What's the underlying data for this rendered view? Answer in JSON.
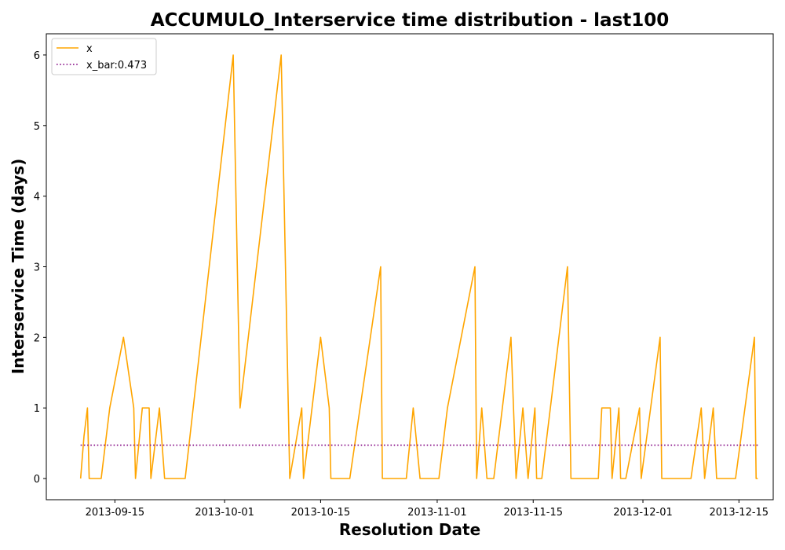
{
  "chart_data": {
    "type": "line",
    "title": "ACCUMULO_Interservice time distribution - last100",
    "xlabel": "Resolution Date",
    "ylabel": "Interservice Time (days)",
    "x_tick_labels": [
      "2013-09-15",
      "2013-10-01",
      "2013-10-15",
      "2013-11-01",
      "2013-11-15",
      "2013-12-01",
      "2013-12-15"
    ],
    "y_tick_labels": [
      "0",
      "1",
      "2",
      "3",
      "4",
      "5",
      "6"
    ],
    "ylim": [
      -0.3,
      6.3
    ],
    "xlim": [
      "2013-09-05",
      "2013-12-20"
    ],
    "legend": {
      "placement": "upper-left",
      "entries": [
        "x",
        "x_bar:0.473"
      ]
    },
    "series": [
      {
        "name": "x",
        "color": "#ffa500",
        "style": "solid",
        "points": [
          [
            "2013-09-10T00",
            0
          ],
          [
            "2013-09-10T12",
            0.6
          ],
          [
            "2013-09-11T00",
            1
          ],
          [
            "2013-09-11T06",
            0
          ],
          [
            "2013-09-12T00",
            0
          ],
          [
            "2013-09-13T00",
            0
          ],
          [
            "2013-09-14T06",
            1
          ],
          [
            "2013-09-16T06",
            2
          ],
          [
            "2013-09-17T18",
            1
          ],
          [
            "2013-09-18T00",
            0
          ],
          [
            "2013-09-19T00",
            1
          ],
          [
            "2013-09-20T00",
            1
          ],
          [
            "2013-09-20T06",
            0
          ],
          [
            "2013-09-21T12",
            1
          ],
          [
            "2013-09-22T06",
            0
          ],
          [
            "2013-09-23T00",
            0
          ],
          [
            "2013-09-25T06",
            0
          ],
          [
            "2013-10-02T06",
            6
          ],
          [
            "2013-10-03T06",
            1
          ],
          [
            "2013-10-09T06",
            6
          ],
          [
            "2013-10-10T12",
            0
          ],
          [
            "2013-10-12T06",
            1
          ],
          [
            "2013-10-12T12",
            0
          ],
          [
            "2013-10-15T00",
            2
          ],
          [
            "2013-10-16T06",
            1
          ],
          [
            "2013-10-16T12",
            0
          ],
          [
            "2013-10-18T00",
            0
          ],
          [
            "2013-10-19T06",
            0
          ],
          [
            "2013-10-23T18",
            3
          ],
          [
            "2013-10-24T00",
            0
          ],
          [
            "2013-10-25T00",
            0
          ],
          [
            "2013-10-27T12",
            0
          ],
          [
            "2013-10-28T12",
            1
          ],
          [
            "2013-10-29T12",
            0
          ],
          [
            "2013-10-30T12",
            0
          ],
          [
            "2013-11-01T06",
            0
          ],
          [
            "2013-11-02T12",
            1
          ],
          [
            "2013-11-06T12",
            3
          ],
          [
            "2013-11-06T18",
            0
          ],
          [
            "2013-11-07T12",
            1
          ],
          [
            "2013-11-08T06",
            0
          ],
          [
            "2013-11-09T06",
            0
          ],
          [
            "2013-11-11T18",
            2
          ],
          [
            "2013-11-12T12",
            0
          ],
          [
            "2013-11-13T12",
            1
          ],
          [
            "2013-11-14T06",
            0
          ],
          [
            "2013-11-15T06",
            1
          ],
          [
            "2013-11-15T12",
            0
          ],
          [
            "2013-11-16T06",
            0
          ],
          [
            "2013-11-20T00",
            3
          ],
          [
            "2013-11-20T12",
            0
          ],
          [
            "2013-11-21T12",
            0
          ],
          [
            "2013-11-23T12",
            0
          ],
          [
            "2013-11-24T12",
            0
          ],
          [
            "2013-11-25T00",
            1
          ],
          [
            "2013-11-26T06",
            1
          ],
          [
            "2013-11-26T12",
            0
          ],
          [
            "2013-11-27T12",
            1
          ],
          [
            "2013-11-27T18",
            0
          ],
          [
            "2013-11-28T12",
            0
          ],
          [
            "2013-11-30T12",
            1
          ],
          [
            "2013-11-30T18",
            0
          ],
          [
            "2013-12-03T12",
            2
          ],
          [
            "2013-12-03T18",
            0
          ],
          [
            "2013-12-05T00",
            0
          ],
          [
            "2013-12-07T12",
            0
          ],
          [
            "2013-12-08T00",
            0
          ],
          [
            "2013-12-09T12",
            1
          ],
          [
            "2013-12-10T00",
            0
          ],
          [
            "2013-12-11T06",
            1
          ],
          [
            "2013-12-11T18",
            0
          ],
          [
            "2013-12-13T00",
            0
          ],
          [
            "2013-12-14T12",
            0
          ],
          [
            "2013-12-17T06",
            2
          ],
          [
            "2013-12-17T12",
            0
          ],
          [
            "2013-12-17T18",
            0
          ]
        ]
      },
      {
        "name": "x_bar:0.473",
        "color": "#800080",
        "style": "dotted",
        "value": 0.473,
        "x_range": [
          "2013-09-10T00",
          "2013-12-17T18"
        ]
      }
    ],
    "grid": false
  }
}
